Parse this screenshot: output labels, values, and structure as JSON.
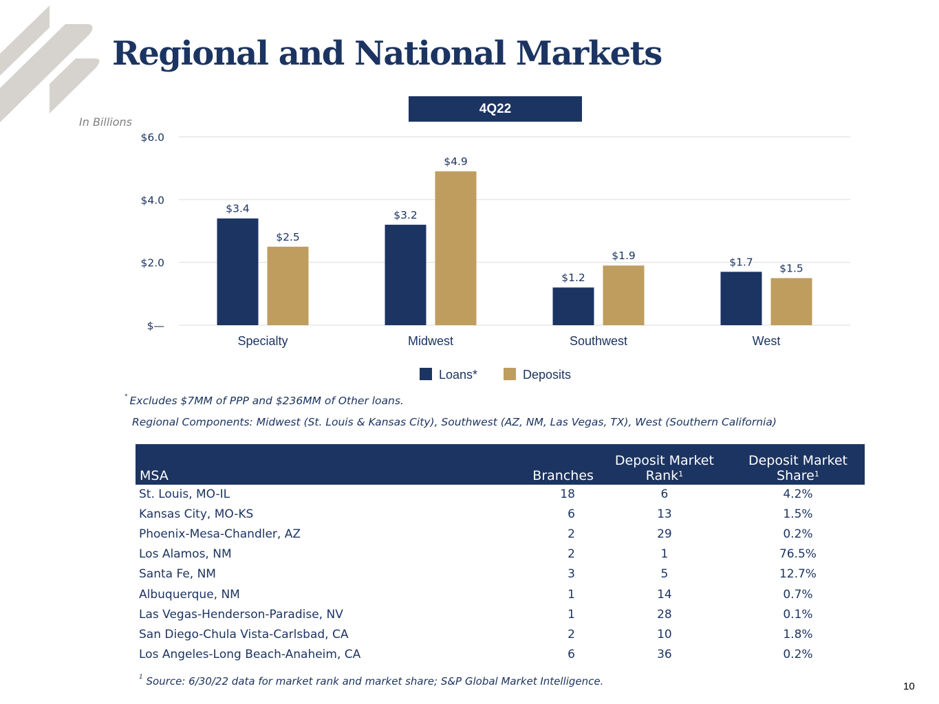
{
  "title": "Regional and National Markets",
  "period_label": "4Q22",
  "units_label": "In Billions",
  "colors": {
    "navy": "#1c3461",
    "gold": "#bf9d5e",
    "grid": "#e6e6e6",
    "logo": "#d6d3ce"
  },
  "chart_data": {
    "type": "bar",
    "title": "4Q22",
    "xlabel": "",
    "ylabel": "In Billions",
    "categories": [
      "Specialty",
      "Midwest",
      "Southwest",
      "West"
    ],
    "series": [
      {
        "name": "Loans*",
        "values": [
          3.4,
          3.2,
          1.2,
          1.7
        ],
        "labels": [
          "$3.4",
          "$3.2",
          "$1.2",
          "$1.7"
        ],
        "color": "#1c3461"
      },
      {
        "name": "Deposits",
        "values": [
          2.5,
          4.9,
          1.9,
          1.5
        ],
        "labels": [
          "$2.5",
          "$4.9",
          "$1.9",
          "$1.5"
        ],
        "color": "#bf9d5e"
      }
    ],
    "ylim": [
      0,
      6
    ],
    "yticks": [
      0,
      2,
      4,
      6
    ],
    "ytick_labels": [
      "$—",
      "$2.0",
      "$4.0",
      "$6.0"
    ],
    "grid": true,
    "legend_position": "bottom-center"
  },
  "footnotes": {
    "ppp_marker": "*",
    "ppp_text": "Excludes $7MM of PPP and $236MM of Other loans.",
    "regional": "Regional Components: Midwest (St. Louis & Kansas City), Southwest (AZ, NM, Las Vegas, TX), West (Southern California)",
    "source_marker": "1",
    "source_text": "Source: 6/30/22 data for market rank and market share; S&P Global Market Intelligence."
  },
  "table": {
    "headers": {
      "msa": "MSA",
      "branches": "Branches",
      "rank_line1": "Deposit Market",
      "rank_line2": "Rank",
      "share_line1": "Deposit Market",
      "share_line2": "Share",
      "footnote_marker": "1"
    },
    "rows": [
      {
        "msa": "St. Louis, MO-IL",
        "branches": "18",
        "rank": "6",
        "share": "4.2%"
      },
      {
        "msa": "Kansas City, MO-KS",
        "branches": "6",
        "rank": "13",
        "share": "1.5%"
      },
      {
        "msa": "Phoenix-Mesa-Chandler, AZ",
        "branches": "2",
        "rank": "29",
        "share": "0.2%"
      },
      {
        "msa": "Los Alamos, NM",
        "branches": "2",
        "rank": "1",
        "share": "76.5%"
      },
      {
        "msa": "Santa Fe, NM",
        "branches": "3",
        "rank": "5",
        "share": "12.7%"
      },
      {
        "msa": "Albuquerque, NM",
        "branches": "1",
        "rank": "14",
        "share": "0.7%"
      },
      {
        "msa": "Las Vegas-Henderson-Paradise, NV",
        "branches": "1",
        "rank": "28",
        "share": "0.1%"
      },
      {
        "msa": "San Diego-Chula Vista-Carlsbad, CA",
        "branches": "2",
        "rank": "10",
        "share": "1.8%"
      },
      {
        "msa": "Los Angeles-Long Beach-Anaheim, CA",
        "branches": "6",
        "rank": "36",
        "share": "0.2%"
      }
    ]
  },
  "page_number": "10"
}
